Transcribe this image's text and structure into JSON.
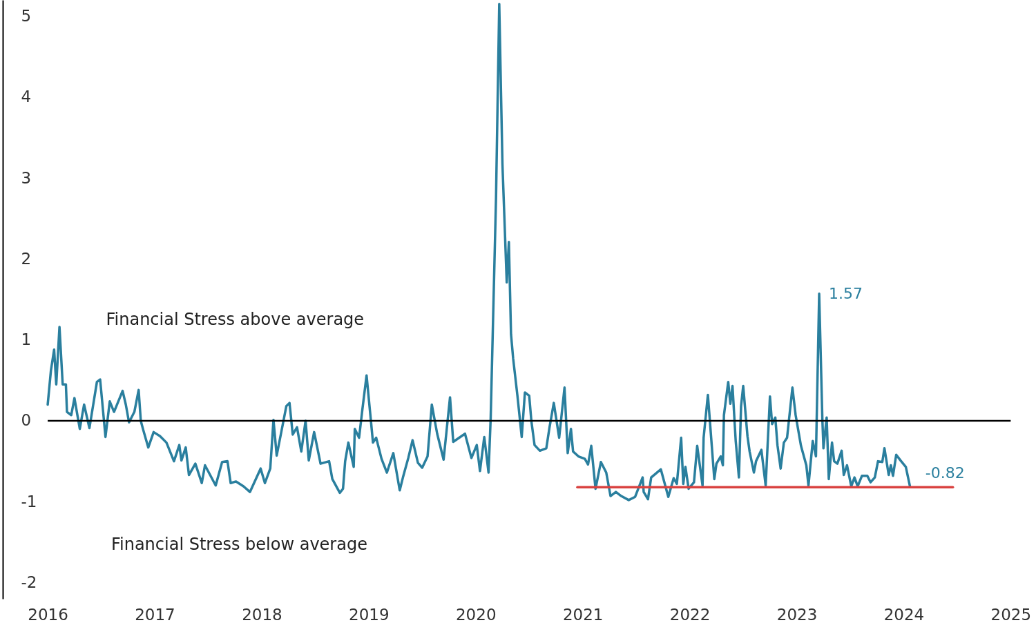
{
  "chart_data": {
    "type": "line",
    "xlim": [
      2015.58,
      2025.23
    ],
    "ylim": [
      -2.2,
      5.2
    ],
    "xticks": [
      2016,
      2017,
      2018,
      2019,
      2020,
      2021,
      2022,
      2023,
      2024,
      2025
    ],
    "yticks": [
      -2,
      -1,
      0,
      1,
      2,
      3,
      4,
      5
    ],
    "grid": false,
    "marker": "none",
    "line_style": "solid",
    "series": [
      {
        "color": "#2a7f9e",
        "x": [
          2016.0,
          2016.03,
          2016.06,
          2016.08,
          2016.11,
          2016.14,
          2016.17,
          2016.18,
          2016.22,
          2016.25,
          2016.3,
          2016.34,
          2016.39,
          2016.46,
          2016.49,
          2016.54,
          2016.58,
          2016.62,
          2016.7,
          2016.73,
          2016.76,
          2016.81,
          2016.85,
          2016.87,
          2016.89,
          2016.94,
          2016.99,
          2017.05,
          2017.11,
          2017.18,
          2017.23,
          2017.25,
          2017.29,
          2017.32,
          2017.38,
          2017.44,
          2017.47,
          2017.57,
          2017.63,
          2017.68,
          2017.71,
          2017.76,
          2017.83,
          2017.89,
          2017.99,
          2018.03,
          2018.08,
          2018.11,
          2018.14,
          2018.18,
          2018.23,
          2018.26,
          2018.29,
          2018.33,
          2018.37,
          2018.41,
          2018.44,
          2018.49,
          2018.55,
          2018.63,
          2018.66,
          2018.73,
          2018.76,
          2018.78,
          2018.81,
          2018.86,
          2018.87,
          2018.91,
          2018.94,
          2018.98,
          2019.02,
          2019.04,
          2019.07,
          2019.12,
          2019.17,
          2019.23,
          2019.29,
          2019.32,
          2019.37,
          2019.41,
          2019.46,
          2019.5,
          2019.55,
          2019.59,
          2019.64,
          2019.7,
          2019.76,
          2019.79,
          2019.9,
          2019.96,
          2020.01,
          2020.04,
          2020.08,
          2020.12,
          2020.14,
          2020.19,
          2020.22,
          2020.25,
          2020.29,
          2020.31,
          2020.33,
          2020.35,
          2020.39,
          2020.43,
          2020.46,
          2020.5,
          2020.52,
          2020.55,
          2020.6,
          2020.66,
          2020.69,
          2020.73,
          2020.78,
          2020.83,
          2020.86,
          2020.89,
          2020.91,
          2020.96,
          2021.02,
          2021.05,
          2021.08,
          2021.12,
          2021.17,
          2021.22,
          2021.26,
          2021.31,
          2021.36,
          2021.43,
          2021.49,
          2021.56,
          2021.57,
          2021.61,
          2021.64,
          2021.73,
          2021.8,
          2021.85,
          2021.88,
          2021.92,
          2021.94,
          2021.96,
          2021.99,
          2022.04,
          2022.07,
          2022.12,
          2022.13,
          2022.17,
          2022.23,
          2022.25,
          2022.29,
          2022.31,
          2022.32,
          2022.36,
          2022.38,
          2022.4,
          2022.43,
          2022.46,
          2022.48,
          2022.5,
          2022.54,
          2022.56,
          2022.6,
          2022.62,
          2022.67,
          2022.71,
          2022.75,
          2022.77,
          2022.8,
          2022.82,
          2022.85,
          2022.88,
          2022.91,
          2022.96,
          2022.99,
          2023.04,
          2023.09,
          2023.11,
          2023.15,
          2023.18,
          2023.21,
          2023.24,
          2023.25,
          2023.28,
          2023.3,
          2023.33,
          2023.35,
          2023.38,
          2023.42,
          2023.44,
          2023.47,
          2023.51,
          2023.54,
          2023.57,
          2023.61,
          2023.66,
          2023.69,
          2023.73,
          2023.76,
          2023.8,
          2023.82,
          2023.86,
          2023.88,
          2023.9,
          2023.93,
          2023.97,
          2024.02,
          2024.06
        ],
        "values": [
          0.2,
          0.62,
          0.88,
          0.45,
          1.16,
          0.45,
          0.45,
          0.11,
          0.07,
          0.28,
          -0.1,
          0.2,
          -0.09,
          0.48,
          0.51,
          -0.2,
          0.24,
          0.11,
          0.37,
          0.2,
          -0.02,
          0.11,
          0.38,
          0.0,
          -0.1,
          -0.33,
          -0.14,
          -0.19,
          -0.27,
          -0.5,
          -0.3,
          -0.49,
          -0.33,
          -0.67,
          -0.53,
          -0.77,
          -0.55,
          -0.8,
          -0.51,
          -0.5,
          -0.77,
          -0.75,
          -0.81,
          -0.88,
          -0.59,
          -0.77,
          -0.59,
          0.01,
          -0.43,
          -0.16,
          0.18,
          0.22,
          -0.17,
          -0.08,
          -0.38,
          0.0,
          -0.49,
          -0.14,
          -0.53,
          -0.5,
          -0.72,
          -0.89,
          -0.84,
          -0.5,
          -0.27,
          -0.57,
          -0.1,
          -0.21,
          0.13,
          0.56,
          0.01,
          -0.27,
          -0.21,
          -0.47,
          -0.64,
          -0.4,
          -0.86,
          -0.7,
          -0.46,
          -0.24,
          -0.52,
          -0.58,
          -0.44,
          0.2,
          -0.16,
          -0.48,
          0.29,
          -0.26,
          -0.16,
          -0.46,
          -0.3,
          -0.62,
          -0.2,
          -0.64,
          0.03,
          2.76,
          5.15,
          3.17,
          1.71,
          2.21,
          1.07,
          0.77,
          0.31,
          -0.2,
          0.35,
          0.31,
          0.0,
          -0.3,
          -0.37,
          -0.34,
          -0.08,
          0.22,
          -0.21,
          0.41,
          -0.4,
          -0.1,
          -0.38,
          -0.44,
          -0.47,
          -0.54,
          -0.31,
          -0.84,
          -0.51,
          -0.64,
          -0.93,
          -0.88,
          -0.93,
          -0.98,
          -0.94,
          -0.7,
          -0.88,
          -0.97,
          -0.7,
          -0.6,
          -0.94,
          -0.71,
          -0.78,
          -0.21,
          -0.78,
          -0.57,
          -0.84,
          -0.76,
          -0.31,
          -0.8,
          -0.21,
          0.32,
          -0.72,
          -0.53,
          -0.44,
          -0.55,
          0.07,
          0.48,
          0.21,
          0.43,
          -0.25,
          -0.7,
          0.18,
          0.43,
          -0.19,
          -0.38,
          -0.64,
          -0.5,
          -0.36,
          -0.8,
          0.3,
          -0.04,
          0.04,
          -0.3,
          -0.59,
          -0.27,
          -0.21,
          0.41,
          0.07,
          -0.31,
          -0.55,
          -0.8,
          -0.25,
          -0.44,
          1.57,
          0.01,
          -0.34,
          0.04,
          -0.72,
          -0.27,
          -0.5,
          -0.53,
          -0.37,
          -0.67,
          -0.55,
          -0.81,
          -0.7,
          -0.81,
          -0.68,
          -0.68,
          -0.76,
          -0.7,
          -0.5,
          -0.51,
          -0.34,
          -0.67,
          -0.55,
          -0.68,
          -0.42,
          -0.49,
          -0.57,
          -0.82
        ]
      },
      {
        "type": "line",
        "color": "#d9413f",
        "x": [
          2020.95,
          2024.46
        ],
        "values": [
          -0.82,
          -0.82
        ]
      }
    ],
    "ref_lines": [
      {
        "axis": "y",
        "value": 0,
        "color": "#000000"
      }
    ],
    "annotations": [
      "Financial Stress above average",
      "Financial Stress below average",
      {
        "text": "1.57",
        "x": 2023.21,
        "y": 1.57
      },
      {
        "text": "-0.82",
        "x": 2024.06,
        "y": -0.82
      }
    ]
  }
}
